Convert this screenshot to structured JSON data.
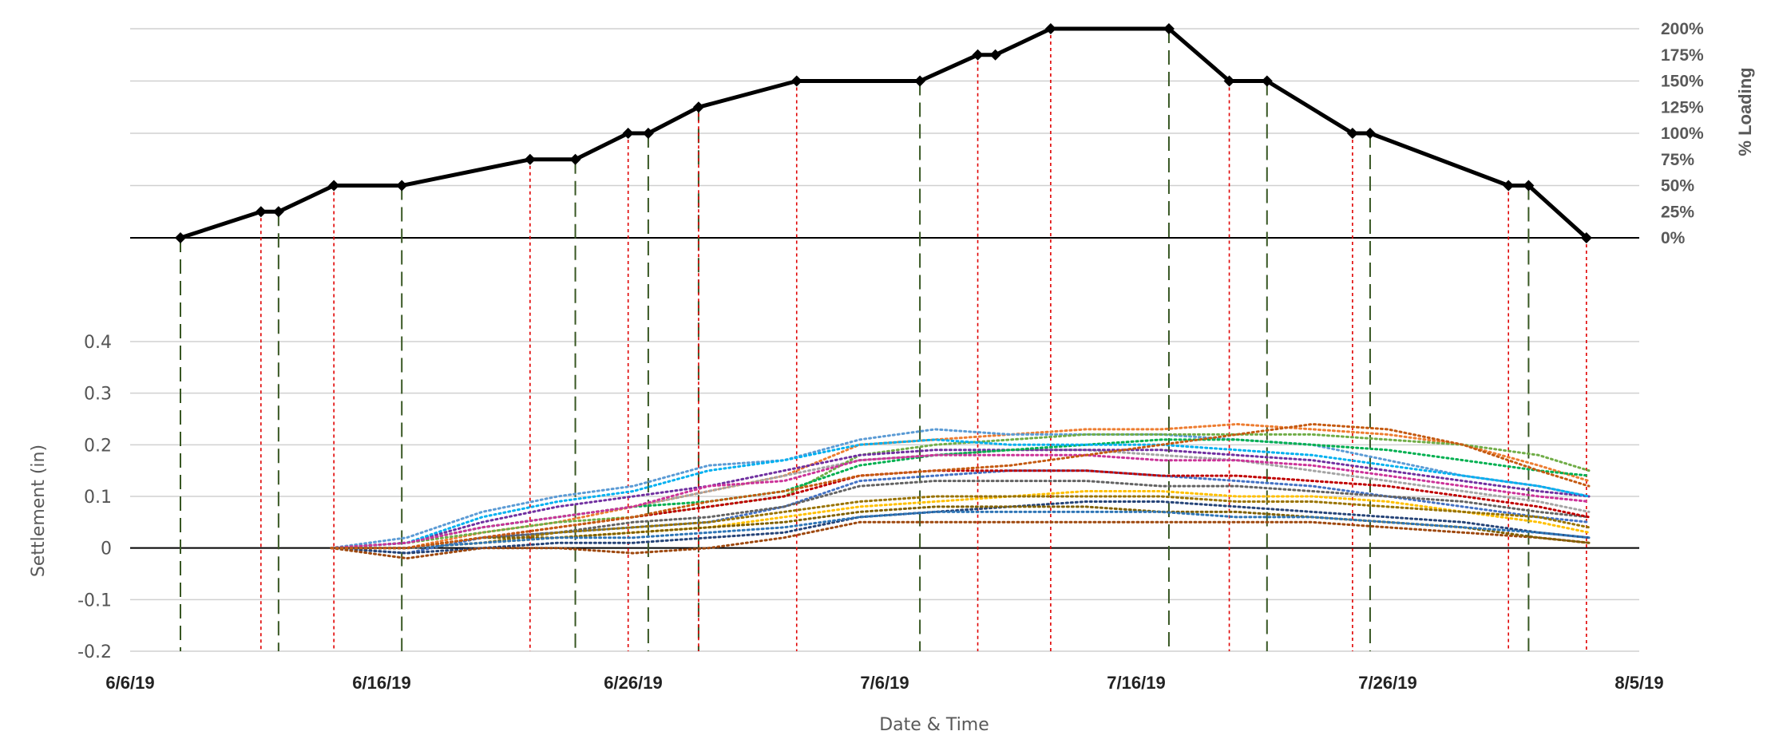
{
  "chart_data": [
    {
      "type": "line",
      "title": "",
      "ylabel": "% Loading",
      "xlabel": "",
      "ylim": [
        0,
        200
      ],
      "yticks": [
        "0%",
        "25%",
        "50%",
        "75%",
        "100%",
        "125%",
        "150%",
        "175%",
        "200%"
      ],
      "color": "#000000",
      "series": [
        {
          "x": [
            "2019-06-08",
            "2019-06-11.2",
            "2019-06-11.9",
            "2019-06-14.1",
            "2019-06-16.8",
            "2019-06-21.9",
            "2019-06-23.7",
            "2019-06-25.8",
            "2019-06-26.6",
            "2019-06-28.6",
            "2019-07-02.5",
            "2019-07-07.4",
            "2019-07-09.7",
            "2019-07-10.4",
            "2019-07-12.6",
            "2019-07-17.3",
            "2019-07-19.7",
            "2019-07-21.2",
            "2019-07-24.6",
            "2019-07-25.3",
            "2019-07-30.8",
            "2019-07-31.6",
            "2019-08-02.9"
          ],
          "values": [
            0,
            25,
            25,
            50,
            50,
            75,
            75,
            100,
            100,
            125,
            150,
            150,
            175,
            175,
            200,
            200,
            150,
            150,
            100,
            100,
            50,
            50,
            0
          ]
        }
      ]
    },
    {
      "type": "line",
      "title": "",
      "xlabel": "Date & Time",
      "ylabel": "Settlement (in)",
      "ylim": [
        -0.2,
        0.4
      ],
      "yticks": [
        "0.4",
        "0.3",
        "0.2",
        "0.1",
        "0",
        "-0.1",
        "-0.2"
      ],
      "xticks": [
        "6/6/19",
        "6/16/19",
        "6/26/19",
        "7/6/19",
        "7/16/19",
        "7/26/19",
        "8/5/19"
      ],
      "xlim": [
        "2019-06-06",
        "2019-08-05"
      ],
      "load_change_markers_red": [
        "2019-06-11.2",
        "2019-06-14.1",
        "2019-06-21.9",
        "2019-06-25.8",
        "2019-06-28.6",
        "2019-07-02.5",
        "2019-07-09.7",
        "2019-07-12.6",
        "2019-07-19.7",
        "2019-07-24.6",
        "2019-07-30.8",
        "2019-08-02.9"
      ],
      "load_hold_markers_green": [
        "2019-06-08",
        "2019-06-11.9",
        "2019-06-16.8",
        "2019-06-23.7",
        "2019-06-26.6",
        "2019-06-28.6",
        "2019-07-07.4",
        "2019-07-17.3",
        "2019-07-21.2",
        "2019-07-25.3",
        "2019-07-31.6"
      ],
      "series_colors": [
        "#4472c4",
        "#ed7d31",
        "#a5a5a5",
        "#ffc000",
        "#5b9bd5",
        "#70ad47",
        "#264478",
        "#9e480e",
        "#636363",
        "#997300",
        "#c00000",
        "#7030a0",
        "#00b050",
        "#00b0f0",
        "#cc3399",
        "#806000",
        "#2e75b6",
        "#c55a11"
      ],
      "series_day": [
        8,
        11,
        14,
        17,
        20,
        23,
        26,
        29,
        32,
        35,
        38,
        41,
        44,
        47,
        50,
        53,
        56,
        58
      ],
      "series": [
        {
          "values": [
            0,
            -0.01,
            0.02,
            0.03,
            0.04,
            0.05,
            0.08,
            0.13,
            0.14,
            0.15,
            0.15,
            0.14,
            0.13,
            0.12,
            0.1,
            0.08,
            0.06,
            0.05
          ]
        },
        {
          "values": [
            0,
            0.0,
            0.03,
            0.05,
            0.08,
            0.11,
            0.14,
            0.2,
            0.21,
            0.22,
            0.23,
            0.23,
            0.24,
            0.23,
            0.22,
            0.2,
            0.16,
            0.13
          ]
        },
        {
          "values": [
            0,
            0.01,
            0.04,
            0.06,
            0.08,
            0.11,
            0.14,
            0.17,
            0.18,
            0.19,
            0.19,
            0.18,
            0.17,
            0.15,
            0.13,
            0.11,
            0.09,
            0.07
          ]
        },
        {
          "values": [
            0,
            0.0,
            0.01,
            0.02,
            0.03,
            0.04,
            0.06,
            0.08,
            0.09,
            0.1,
            0.11,
            0.11,
            0.1,
            0.1,
            0.09,
            0.07,
            0.05,
            0.03
          ]
        },
        {
          "values": [
            0,
            0.02,
            0.07,
            0.1,
            0.12,
            0.16,
            0.17,
            0.21,
            0.23,
            0.22,
            0.22,
            0.22,
            0.21,
            0.2,
            0.17,
            0.14,
            0.12,
            0.1
          ]
        },
        {
          "values": [
            0,
            0.01,
            0.03,
            0.05,
            0.06,
            0.08,
            0.1,
            0.18,
            0.2,
            0.21,
            0.22,
            0.22,
            0.22,
            0.22,
            0.21,
            0.2,
            0.18,
            0.15
          ]
        },
        {
          "values": [
            0,
            -0.01,
            0.0,
            0.01,
            0.01,
            0.02,
            0.03,
            0.06,
            0.07,
            0.08,
            0.09,
            0.09,
            0.08,
            0.07,
            0.06,
            0.05,
            0.03,
            0.02
          ]
        },
        {
          "values": [
            0,
            -0.02,
            0.0,
            0.0,
            -0.01,
            0.0,
            0.02,
            0.05,
            0.05,
            0.05,
            0.05,
            0.05,
            0.05,
            0.05,
            0.04,
            0.03,
            0.02,
            0.01
          ]
        },
        {
          "values": [
            0,
            0.0,
            0.02,
            0.03,
            0.05,
            0.06,
            0.08,
            0.12,
            0.13,
            0.13,
            0.13,
            0.12,
            0.12,
            0.11,
            0.1,
            0.09,
            0.07,
            0.06
          ]
        },
        {
          "values": [
            0,
            0.0,
            0.01,
            0.03,
            0.04,
            0.05,
            0.07,
            0.09,
            0.1,
            0.1,
            0.1,
            0.1,
            0.09,
            0.09,
            0.08,
            0.07,
            0.06,
            0.04
          ]
        },
        {
          "values": [
            0,
            0.0,
            0.02,
            0.04,
            0.06,
            0.08,
            0.1,
            0.14,
            0.15,
            0.15,
            0.15,
            0.14,
            0.14,
            0.13,
            0.12,
            0.1,
            0.08,
            0.06
          ]
        },
        {
          "values": [
            0,
            0.01,
            0.05,
            0.08,
            0.1,
            0.12,
            0.15,
            0.18,
            0.19,
            0.19,
            0.19,
            0.19,
            0.18,
            0.17,
            0.15,
            0.13,
            0.11,
            0.1
          ]
        },
        {
          "values": [
            0,
            0.01,
            0.04,
            0.06,
            0.08,
            0.09,
            0.11,
            0.16,
            0.18,
            0.19,
            0.2,
            0.21,
            0.21,
            0.2,
            0.19,
            0.17,
            0.15,
            0.14
          ]
        },
        {
          "values": [
            0,
            0.01,
            0.06,
            0.09,
            0.11,
            0.15,
            0.17,
            0.2,
            0.21,
            0.2,
            0.2,
            0.2,
            0.19,
            0.18,
            0.16,
            0.14,
            0.12,
            0.1
          ]
        },
        {
          "values": [
            0,
            0.01,
            0.04,
            0.06,
            0.08,
            0.12,
            0.13,
            0.17,
            0.18,
            0.18,
            0.18,
            0.17,
            0.17,
            0.16,
            0.14,
            0.12,
            0.1,
            0.09
          ]
        },
        {
          "values": [
            0,
            0.0,
            0.02,
            0.02,
            0.03,
            0.04,
            0.05,
            0.07,
            0.08,
            0.08,
            0.08,
            0.07,
            0.07,
            0.06,
            0.05,
            0.04,
            0.02,
            0.01
          ]
        },
        {
          "values": [
            0,
            0.0,
            0.01,
            0.02,
            0.02,
            0.03,
            0.04,
            0.06,
            0.07,
            0.07,
            0.07,
            0.07,
            0.06,
            0.06,
            0.05,
            0.04,
            0.03,
            0.02
          ]
        },
        {
          "values": [
            0,
            0.0,
            0.02,
            0.04,
            0.06,
            0.09,
            0.11,
            0.14,
            0.15,
            0.16,
            0.18,
            0.2,
            0.22,
            0.24,
            0.23,
            0.2,
            0.15,
            0.12
          ]
        }
      ]
    }
  ]
}
